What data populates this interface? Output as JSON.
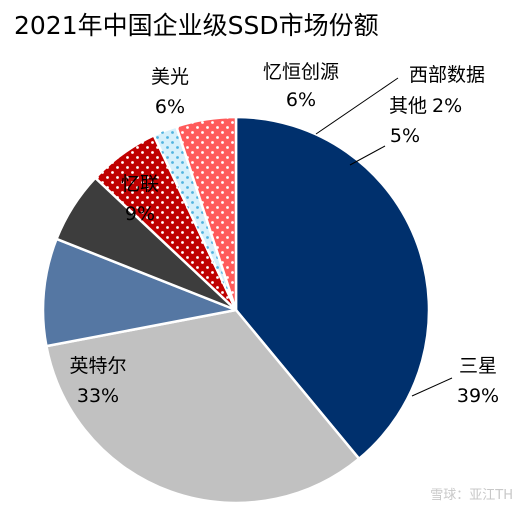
{
  "chart_data": {
    "type": "pie",
    "title": "2021年中国企业级SSD市场份额",
    "start_angle_deg": 90,
    "direction": "clockwise",
    "slices": [
      {
        "name": "三星",
        "value": 39,
        "label": "39%",
        "color": "#00306d",
        "pattern": "solid"
      },
      {
        "name": "英特尔",
        "value": 33,
        "label": "33%",
        "color": "#c1c1c1",
        "pattern": "solid"
      },
      {
        "name": "忆联",
        "value": 9,
        "label": "9%",
        "color": "#5577a3",
        "pattern": "solid"
      },
      {
        "name": "美光",
        "value": 6,
        "label": "6%",
        "color": "#3d3d3d",
        "pattern": "solid"
      },
      {
        "name": "忆恒创源",
        "value": 6,
        "label": "6%",
        "color": "#c00000",
        "pattern": "dots-white"
      },
      {
        "name": "西部数据",
        "value": 2,
        "label": "2%",
        "color": "#d6f0fb",
        "pattern": "dots-blue"
      },
      {
        "name": "其他",
        "value": 5,
        "label": "5%",
        "color": "#ff5b5b",
        "pattern": "dots-white"
      }
    ],
    "legend": "none"
  },
  "watermark": "雪球：亚江TH"
}
